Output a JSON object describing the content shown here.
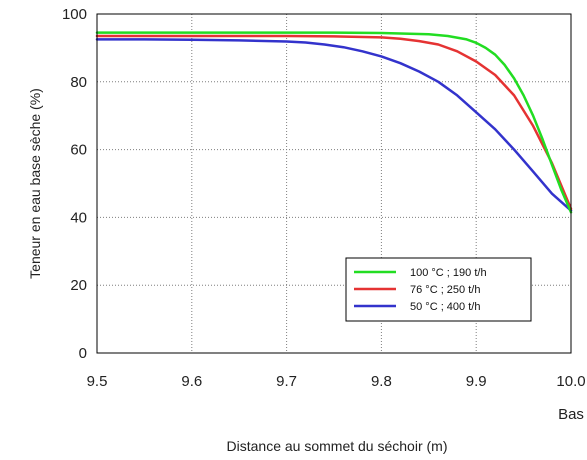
{
  "chart_data": {
    "type": "line",
    "title": "",
    "xlabel": "Distance au sommet du séchoir (m)",
    "ylabel": "Teneur en eau base sèche (%)",
    "x_extra_label": "Bas",
    "xlim": [
      9.5,
      10.0
    ],
    "ylim": [
      0,
      100
    ],
    "xticks": [
      "9.5",
      "9.6",
      "9.7",
      "9.8",
      "9.9",
      "10.0"
    ],
    "yticks": [
      "0",
      "20",
      "40",
      "60",
      "80",
      "100"
    ],
    "grid": true,
    "legend_position": "lower-right",
    "series": [
      {
        "name": "100 °C ; 190 t/h",
        "color": "#22dd22",
        "x": [
          9.5,
          9.6,
          9.7,
          9.75,
          9.8,
          9.85,
          9.87,
          9.89,
          9.9,
          9.91,
          9.92,
          9.93,
          9.94,
          9.95,
          9.96,
          9.97,
          9.98,
          9.99,
          10.0
        ],
        "y": [
          94.5,
          94.5,
          94.5,
          94.5,
          94.4,
          94.0,
          93.5,
          92.5,
          91.5,
          90.0,
          88.0,
          85.0,
          81.0,
          76.0,
          70.0,
          63.0,
          55.5,
          48.0,
          41.5
        ]
      },
      {
        "name": "76 °C ; 250 t/h",
        "color": "#e53333",
        "x": [
          9.5,
          9.6,
          9.7,
          9.75,
          9.8,
          9.82,
          9.84,
          9.86,
          9.88,
          9.9,
          9.92,
          9.94,
          9.96,
          9.98,
          10.0
        ],
        "y": [
          93.5,
          93.5,
          93.5,
          93.4,
          93.1,
          92.7,
          92.0,
          91.0,
          89.0,
          86.0,
          82.0,
          76.0,
          67.0,
          56.0,
          42.5
        ]
      },
      {
        "name": "50 °C ; 400 t/h",
        "color": "#3333cc",
        "x": [
          9.5,
          9.55,
          9.6,
          9.65,
          9.7,
          9.72,
          9.74,
          9.76,
          9.78,
          9.8,
          9.82,
          9.84,
          9.86,
          9.88,
          9.9,
          9.92,
          9.94,
          9.96,
          9.98,
          10.0
        ],
        "y": [
          92.5,
          92.5,
          92.4,
          92.2,
          91.9,
          91.6,
          91.0,
          90.2,
          89.0,
          87.5,
          85.5,
          83.0,
          80.0,
          76.0,
          71.0,
          66.0,
          60.0,
          53.5,
          47.0,
          42.0
        ]
      }
    ]
  }
}
